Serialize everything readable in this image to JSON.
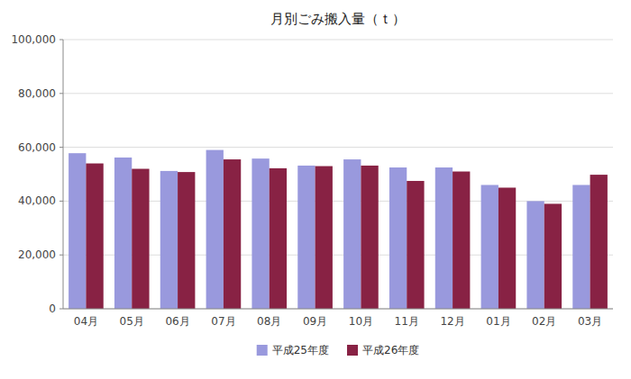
{
  "chart_data": {
    "type": "bar",
    "title": "月別ごみ搬入量（ｔ）",
    "categories": [
      "04月",
      "05月",
      "06月",
      "07月",
      "08月",
      "09月",
      "10月",
      "11月",
      "12月",
      "01月",
      "02月",
      "03月"
    ],
    "series": [
      {
        "name": "平成25年度",
        "color": "#9999dd",
        "values": [
          57800,
          56200,
          51200,
          59000,
          55800,
          53200,
          55500,
          52500,
          52500,
          46000,
          40000,
          46000
        ]
      },
      {
        "name": "平成26年度",
        "color": "#882244",
        "values": [
          54000,
          52000,
          50800,
          55500,
          52200,
          53000,
          53200,
          47500,
          51000,
          45000,
          39000,
          49800
        ]
      }
    ],
    "ylim": [
      0,
      100000
    ],
    "yticks": [
      0,
      {
        "value": 20000,
        "label": "20,000"
      },
      {
        "value": 40000,
        "label": "40,000"
      },
      {
        "value": 60000,
        "label": "60,000"
      },
      {
        "value": 80000,
        "label": "80,000"
      },
      {
        "value": 100000,
        "label": "100,000"
      }
    ],
    "grid": true,
    "legend": "bottom"
  }
}
